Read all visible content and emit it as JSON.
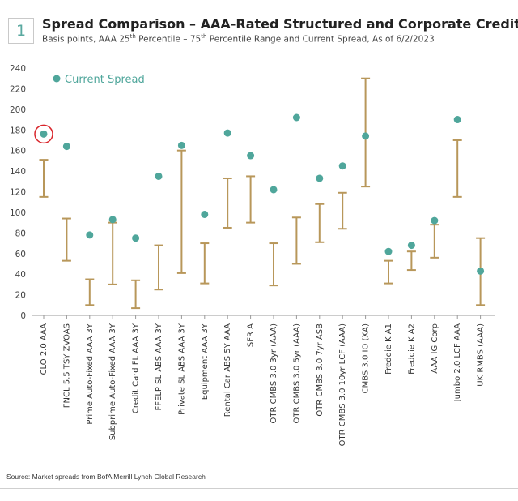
{
  "header": {
    "figure_number": "1",
    "title": "Spread Comparison – AAA-Rated Structured and Corporate Credit",
    "subtitle_part1": "Basis points, AAA 25",
    "subtitle_sup1": "th",
    "subtitle_part2": " Percentile – 75",
    "subtitle_sup2": "th",
    "subtitle_part3": " Percentile Range and Current Spread, As of 6/2/2023"
  },
  "source": "Source: Market spreads from BofA Merrill Lynch Global Research",
  "colors": {
    "range": "#b8975a",
    "dot": "#4fa69b",
    "highlight": "#d9262c",
    "axis": "#999999"
  },
  "chart_data": {
    "type": "scatter",
    "title": "Spread Comparison – AAA-Rated Structured and Corporate Credit",
    "ylim": [
      0,
      240
    ],
    "yticks": [
      0,
      20,
      40,
      60,
      80,
      100,
      120,
      140,
      160,
      180,
      200,
      220,
      240
    ],
    "legend": {
      "label": "Current Spread",
      "placement": "top-left"
    },
    "highlighted_category": "CLO 2.0 AAA",
    "categories": [
      "CLO 2.0 AAA",
      "FNCL 5.5 TSY ZVOAS",
      "Prime Auto-Fixed AAA 3Y",
      "Subprime Auto-Fixed AAA 3Y",
      "Credit Card FL AAA 3Y",
      "FFELP SL ABS AAA 3Y",
      "Private SL ABS AAA 3Y",
      "Equipment AAA 3Y",
      "Rental Car ABS 5Y AAA",
      "SFR A",
      "OTR CMBS 3.0 3yr (AAA)",
      "OTR CMBS 3.0 5yr (AAA)",
      "OTR CMBS 3.0 7yr ASB",
      "OTR CMBS 3.0 10yr LCF (AAA)",
      "CMBS 3.0 IO (XA)",
      "Freddie K A1",
      "Freddie K A2",
      "AAA IG Corp",
      "Jumbo 2.0 LCF AAA",
      "UK RMBS (AAA)"
    ],
    "series": [
      {
        "name": "25th Percentile",
        "values": [
          115,
          53,
          10,
          30,
          7,
          25,
          41,
          31,
          85,
          90,
          29,
          50,
          71,
          84,
          125,
          31,
          44,
          56,
          115,
          10
        ]
      },
      {
        "name": "75th Percentile",
        "values": [
          151,
          94,
          35,
          90,
          34,
          68,
          160,
          70,
          133,
          135,
          70,
          95,
          108,
          119,
          230,
          53,
          62,
          88,
          170,
          75
        ]
      },
      {
        "name": "Current Spread",
        "values": [
          176,
          164,
          78,
          93,
          75,
          135,
          165,
          98,
          177,
          155,
          122,
          192,
          133,
          145,
          174,
          62,
          68,
          92,
          190,
          43
        ]
      }
    ]
  }
}
